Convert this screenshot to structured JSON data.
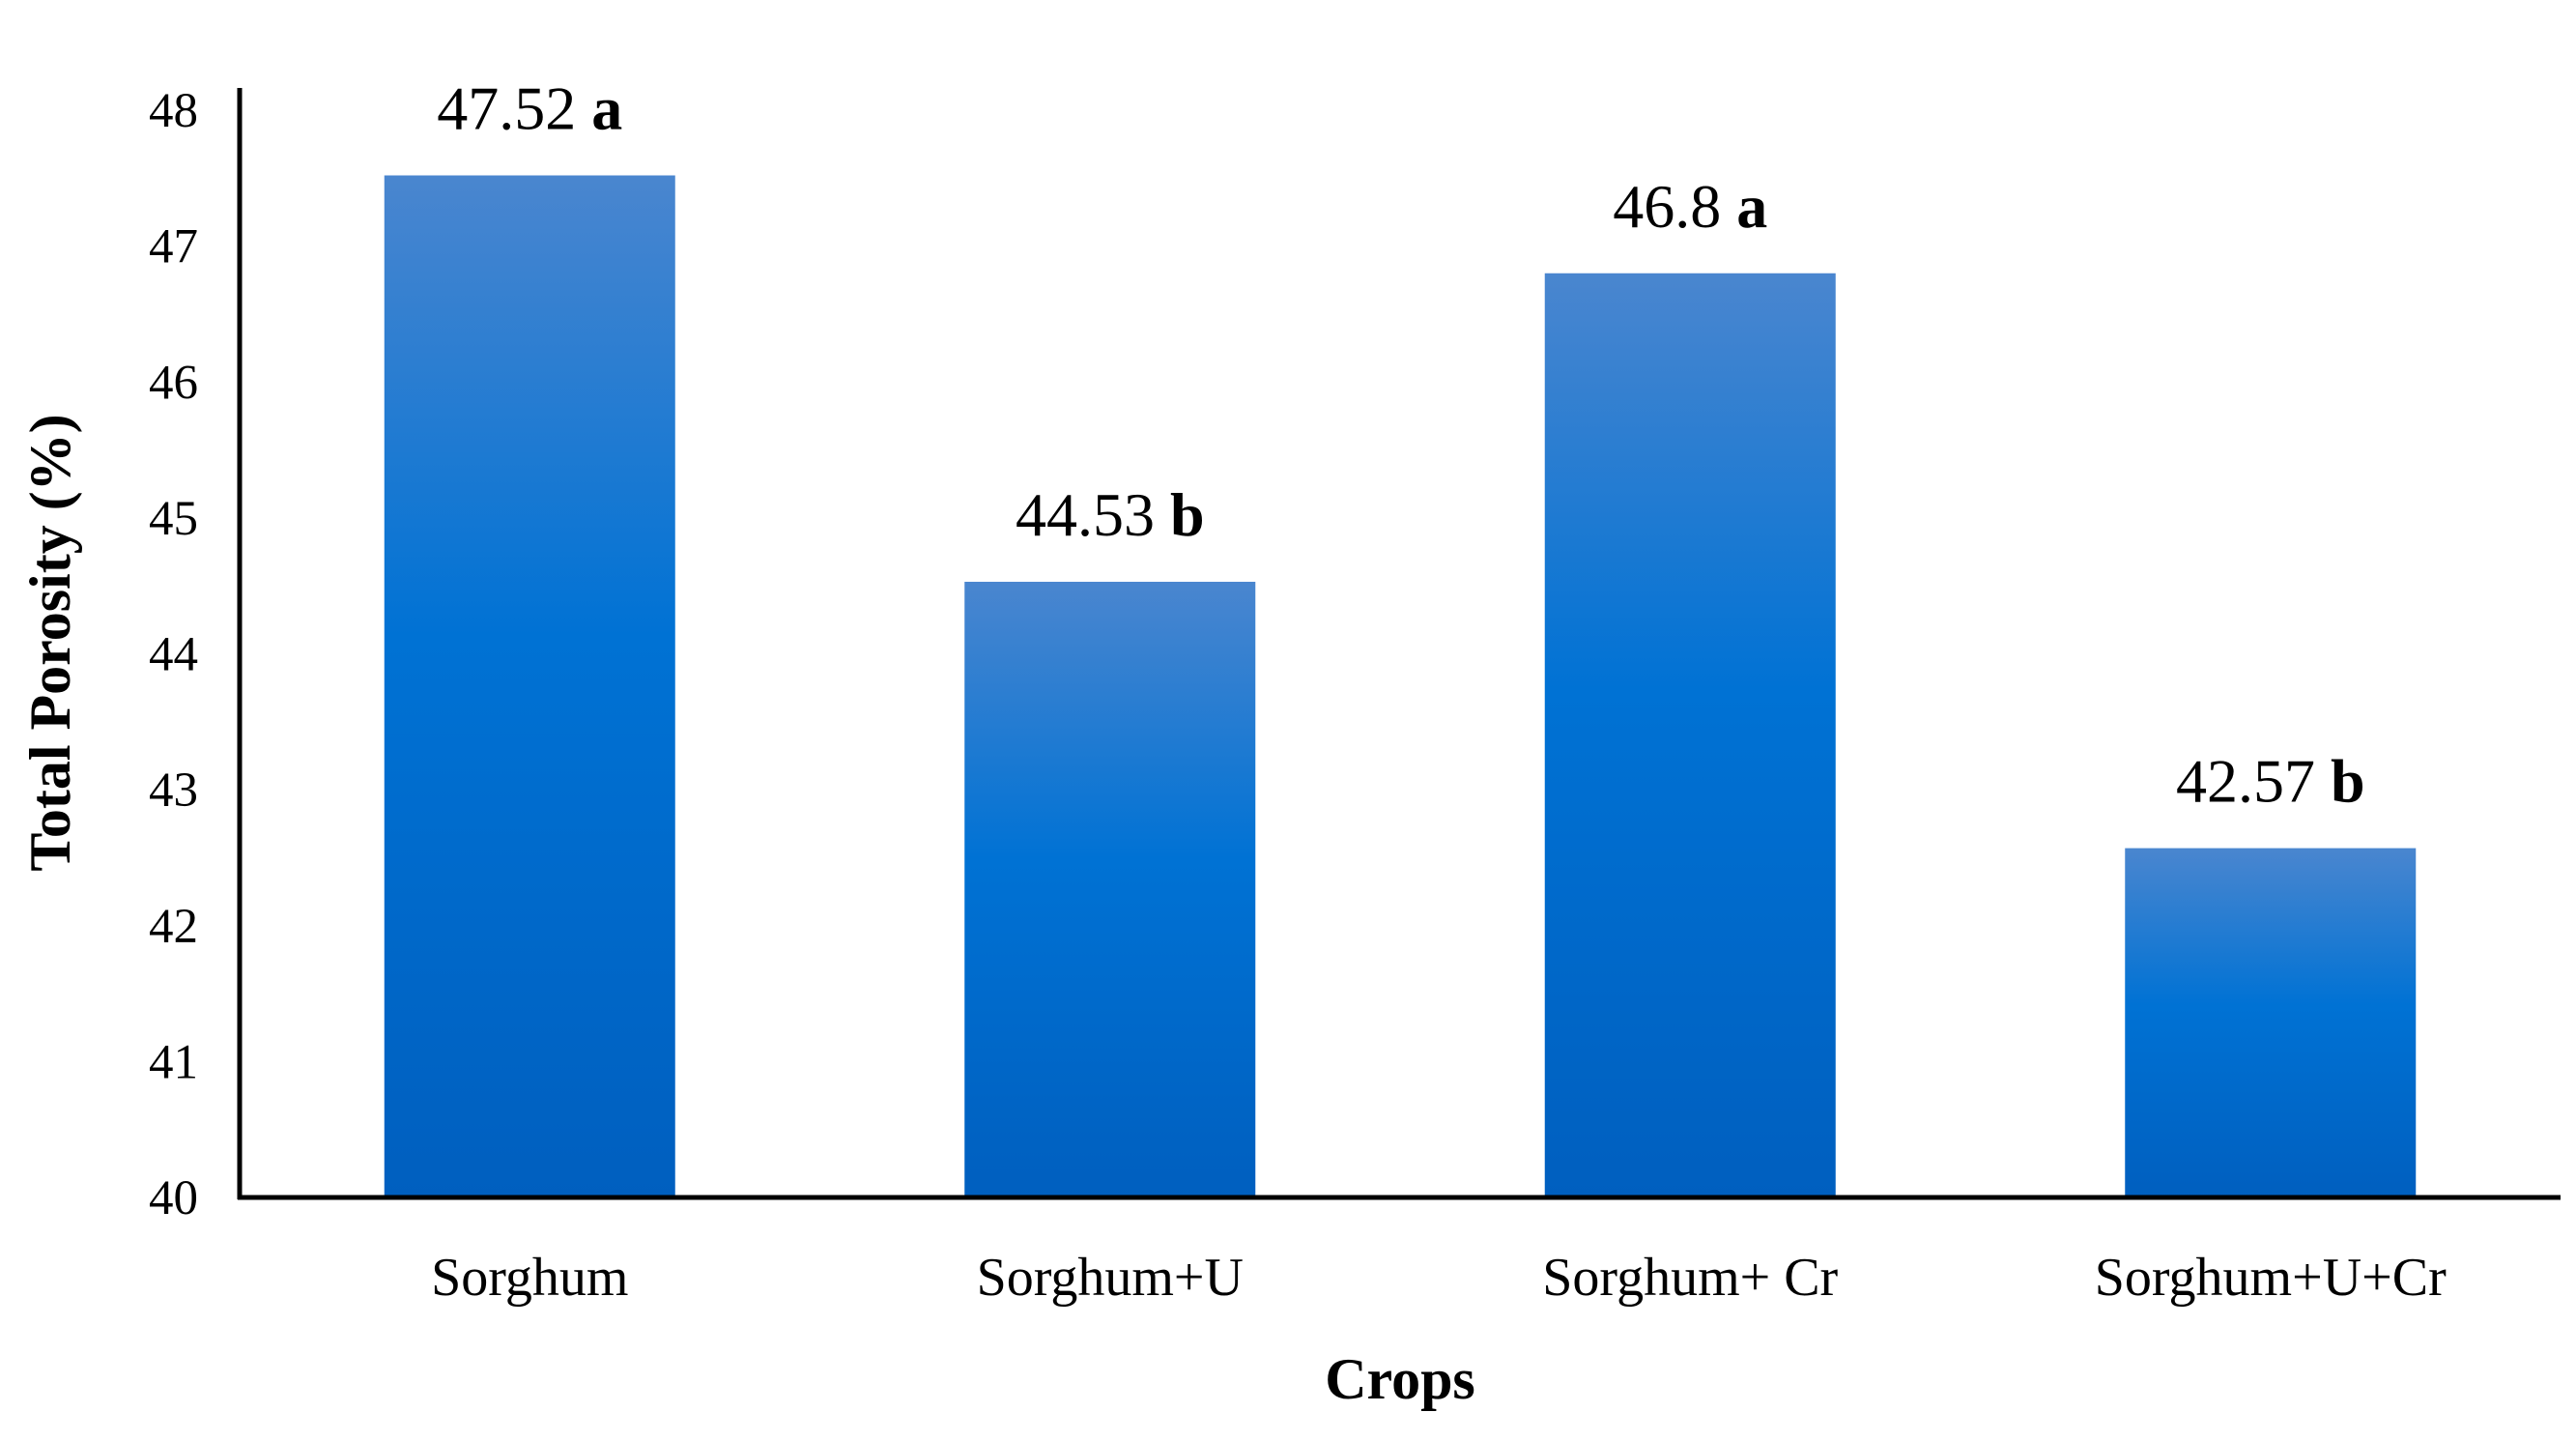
{
  "chart_data": {
    "type": "bar",
    "title": "",
    "xlabel": "Crops",
    "ylabel": "Total Porosity (%)",
    "ylim": [
      40,
      48
    ],
    "yticks": [
      40,
      41,
      42,
      43,
      44,
      45,
      46,
      47,
      48
    ],
    "grid": false,
    "categories": [
      "Sorghum",
      "Sorghum+U",
      "Sorghum+ Cr",
      "Sorghum+U+Cr"
    ],
    "values": [
      47.52,
      44.53,
      46.8,
      42.57
    ],
    "value_labels": [
      "47.52",
      "44.53",
      "46.8",
      "42.57"
    ],
    "significance_letters": [
      "a",
      "b",
      "a",
      "b"
    ],
    "colors": {
      "bar_top": "#4a86cf",
      "bar_mid": "#0072d4",
      "bar_bottom": "#005fbf",
      "axis": "#000000"
    }
  }
}
